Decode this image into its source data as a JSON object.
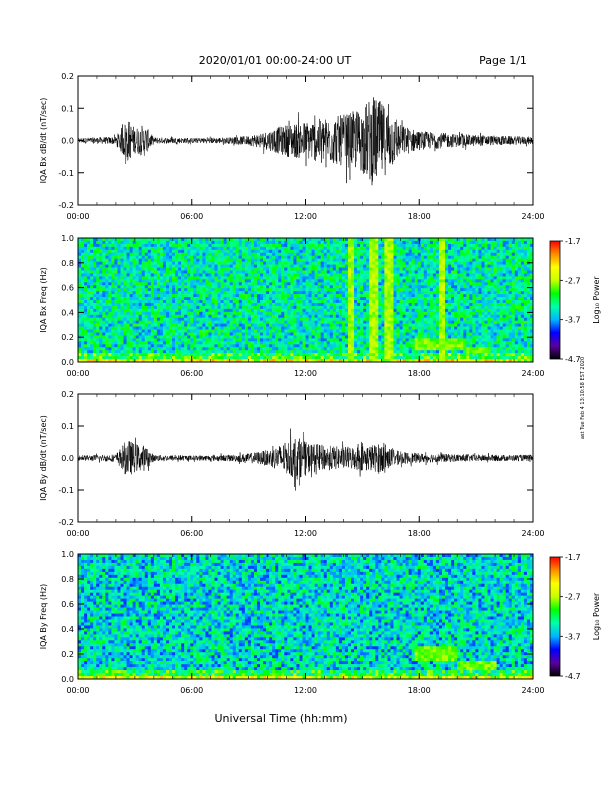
{
  "header": {
    "title": "2020/01/01  00:00-24:00 UT",
    "page": "Page 1/1"
  },
  "x_axis_label": "Universal Time (hh:mm)",
  "side_note": "ast Tue Feb 4 13:10:58 EST 2020",
  "colorbar": {
    "label": "Log₁₀ Power",
    "ticks": [
      "-1.7",
      "-2.7",
      "-3.7",
      "-4.7"
    ],
    "range": [
      -4.7,
      -1.7
    ],
    "colors": [
      "#000000",
      "#5a00a0",
      "#0000ff",
      "#00b4ff",
      "#00ffaa",
      "#00ff00",
      "#c8ff00",
      "#ffff00",
      "#ff8c00",
      "#ff0000"
    ]
  },
  "chart_data": [
    {
      "type": "line",
      "ylabel": "IQA Bx dB/dt (nT/sec)",
      "xlim": [
        0,
        24
      ],
      "ylim": [
        -0.2,
        0.2
      ],
      "x_ticks": [
        "00:00",
        "06:00",
        "12:00",
        "18:00",
        "24:00"
      ],
      "y_ticks": [
        "0.2",
        "0.1",
        "0.0",
        "-0.1",
        "-0.2"
      ],
      "envelope_hours": [
        0,
        2,
        2.6,
        3,
        3.5,
        4,
        6,
        8,
        9,
        10,
        11,
        12,
        13,
        14,
        15,
        15.5,
        16,
        16.5,
        17,
        18,
        20,
        22,
        24
      ],
      "envelope_amplitude": [
        0.008,
        0.012,
        0.07,
        0.04,
        0.05,
        0.01,
        0.008,
        0.01,
        0.015,
        0.03,
        0.05,
        0.06,
        0.07,
        0.08,
        0.1,
        0.14,
        0.12,
        0.09,
        0.05,
        0.03,
        0.02,
        0.015,
        0.012
      ]
    },
    {
      "type": "heatmap",
      "ylabel": "IQA Bx Freq (Hz)",
      "xlim": [
        0,
        24
      ],
      "ylim": [
        0,
        1.0
      ],
      "x_ticks": [
        "00:00",
        "06:00",
        "12:00",
        "18:00",
        "24:00"
      ],
      "y_ticks": [
        "1.0",
        "0.8",
        "0.6",
        "0.4",
        "0.2",
        "0.0"
      ],
      "background_log_power": -3.4,
      "vertical_bands_hours": [
        [
          14.2,
          14.6
        ],
        [
          15.3,
          15.8
        ],
        [
          16.1,
          16.6
        ],
        [
          19.0,
          19.4
        ]
      ],
      "low_freq_patches": [
        [
          17.8,
          20.5,
          0.1,
          0.18
        ],
        [
          20.5,
          21.8,
          0.06,
          0.12
        ]
      ]
    },
    {
      "type": "line",
      "ylabel": "IQA By dB/dt (nT/sec)",
      "xlim": [
        0,
        24
      ],
      "ylim": [
        -0.2,
        0.2
      ],
      "x_ticks": [
        "00:00",
        "06:00",
        "12:00",
        "18:00",
        "24:00"
      ],
      "y_ticks": [
        "0.2",
        "0.1",
        "0.0",
        "-0.1",
        "-0.2"
      ],
      "envelope_hours": [
        0,
        2,
        2.6,
        3,
        3.5,
        4,
        6,
        8,
        9,
        10,
        11,
        11.5,
        12,
        13,
        14,
        15,
        16,
        16.5,
        17,
        18,
        20,
        22,
        24
      ],
      "envelope_amplitude": [
        0.008,
        0.012,
        0.06,
        0.045,
        0.04,
        0.01,
        0.008,
        0.01,
        0.015,
        0.025,
        0.05,
        0.07,
        0.05,
        0.04,
        0.035,
        0.04,
        0.045,
        0.03,
        0.02,
        0.015,
        0.012,
        0.01,
        0.01
      ]
    },
    {
      "type": "heatmap",
      "ylabel": "IQA By Freq (Hz)",
      "xlim": [
        0,
        24
      ],
      "ylim": [
        0,
        1.0
      ],
      "x_ticks": [
        "00:00",
        "06:00",
        "12:00",
        "18:00",
        "24:00"
      ],
      "y_ticks": [
        "1.0",
        "0.8",
        "0.6",
        "0.4",
        "0.2",
        "0.0"
      ],
      "background_log_power": -3.5,
      "vertical_bands_hours": [],
      "low_freq_patches": [
        [
          17.8,
          20.0,
          0.15,
          0.25
        ],
        [
          20.0,
          22.0,
          0.08,
          0.15
        ]
      ]
    }
  ]
}
